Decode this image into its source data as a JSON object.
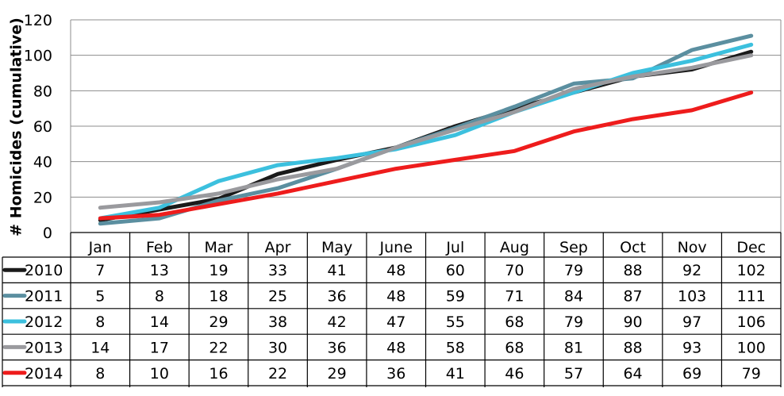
{
  "chart_data": {
    "type": "line",
    "title": "",
    "xlabel": "",
    "ylabel": "# Homicides (cumulative)",
    "ylim": [
      0,
      120
    ],
    "yticks": [
      0,
      20,
      40,
      60,
      80,
      100,
      120
    ],
    "grid": true,
    "legend": "data-table-left",
    "categories": [
      "Jan",
      "Feb",
      "Mar",
      "Apr",
      "May",
      "June",
      "Jul",
      "Aug",
      "Sep",
      "Oct",
      "Nov",
      "Dec"
    ],
    "series": [
      {
        "name": "2010",
        "color": "#1a1a1a",
        "values": [
          7,
          13,
          19,
          33,
          41,
          48,
          60,
          70,
          79,
          88,
          92,
          102
        ]
      },
      {
        "name": "2011",
        "color": "#5b8fa0",
        "values": [
          5,
          8,
          18,
          25,
          36,
          48,
          59,
          71,
          84,
          87,
          103,
          111
        ]
      },
      {
        "name": "2012",
        "color": "#3cc0de",
        "values": [
          8,
          14,
          29,
          38,
          42,
          47,
          55,
          68,
          79,
          90,
          97,
          106
        ]
      },
      {
        "name": "2013",
        "color": "#9a9a9e",
        "values": [
          14,
          17,
          22,
          30,
          36,
          48,
          58,
          68,
          81,
          88,
          93,
          100
        ]
      },
      {
        "name": "2014",
        "color": "#ee1c1c",
        "values": [
          8,
          10,
          16,
          22,
          29,
          36,
          41,
          46,
          57,
          64,
          69,
          79
        ]
      }
    ]
  }
}
